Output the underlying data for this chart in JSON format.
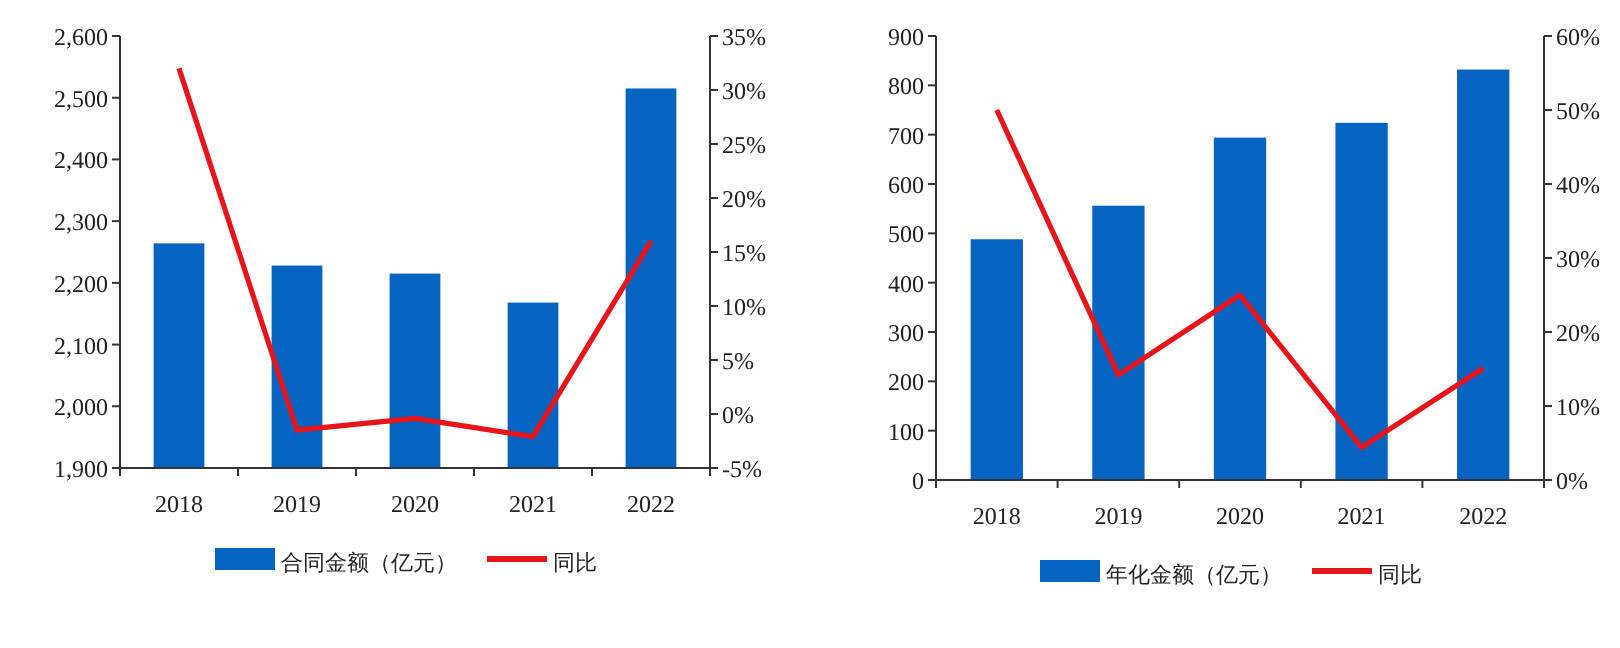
{
  "chart_data": [
    {
      "type": "bar",
      "categories": [
        "2018",
        "2019",
        "2020",
        "2021",
        "2022"
      ],
      "series": [
        {
          "name": "合同金额（亿元）",
          "color": "#0563c1",
          "values": [
            2264,
            2228,
            2215,
            2168,
            2515
          ]
        },
        {
          "name": "同比",
          "type": "line",
          "axis": "y2",
          "color": "#e8141c",
          "values": [
            32,
            -1.5,
            -0.4,
            -2.1,
            16
          ]
        }
      ],
      "ylim": [
        1900,
        2600
      ],
      "yticks": [
        {
          "value": 1900,
          "label": "1,900"
        },
        {
          "value": 2000,
          "label": "2,000"
        },
        {
          "value": 2100,
          "label": "2,100"
        },
        {
          "value": 2200,
          "label": "2,200"
        },
        {
          "value": 2300,
          "label": "2,300"
        },
        {
          "value": 2400,
          "label": "2,400"
        },
        {
          "value": 2500,
          "label": "2,500"
        },
        {
          "value": 2600,
          "label": "2,600"
        }
      ],
      "y2lim": [
        -5,
        35
      ],
      "y2ticks": [
        {
          "value": -5,
          "label": "-5%"
        },
        {
          "value": 0,
          "label": "0%"
        },
        {
          "value": 5,
          "label": "5%"
        },
        {
          "value": 10,
          "label": "10%"
        },
        {
          "value": 15,
          "label": "15%"
        },
        {
          "value": 20,
          "label": "20%"
        },
        {
          "value": 25,
          "label": "25%"
        },
        {
          "value": 30,
          "label": "30%"
        },
        {
          "value": 35,
          "label": "35%"
        }
      ],
      "legend": "bottom"
    },
    {
      "type": "bar",
      "categories": [
        "2018",
        "2019",
        "2020",
        "2021",
        "2022"
      ],
      "series": [
        {
          "name": "年化金额（亿元）",
          "color": "#0563c1",
          "values": [
            488,
            556,
            694,
            724,
            832
          ]
        },
        {
          "name": "同比",
          "type": "line",
          "axis": "y2",
          "color": "#e8141c",
          "values": [
            50,
            14.2,
            25,
            4.4,
            15.1
          ]
        }
      ],
      "ylim": [
        0,
        900
      ],
      "yticks": [
        0,
        100,
        200,
        300,
        400,
        500,
        600,
        700,
        800,
        900
      ],
      "y2lim": [
        0,
        60
      ],
      "y2ticks": [
        {
          "value": 0,
          "label": "0%"
        },
        {
          "value": 10,
          "label": "10%"
        },
        {
          "value": 20,
          "label": "20%"
        },
        {
          "value": 30,
          "label": "30%"
        },
        {
          "value": 40,
          "label": "40%"
        },
        {
          "value": 50,
          "label": "50%"
        },
        {
          "value": 60,
          "label": "60%"
        }
      ],
      "legend": "bottom"
    }
  ]
}
